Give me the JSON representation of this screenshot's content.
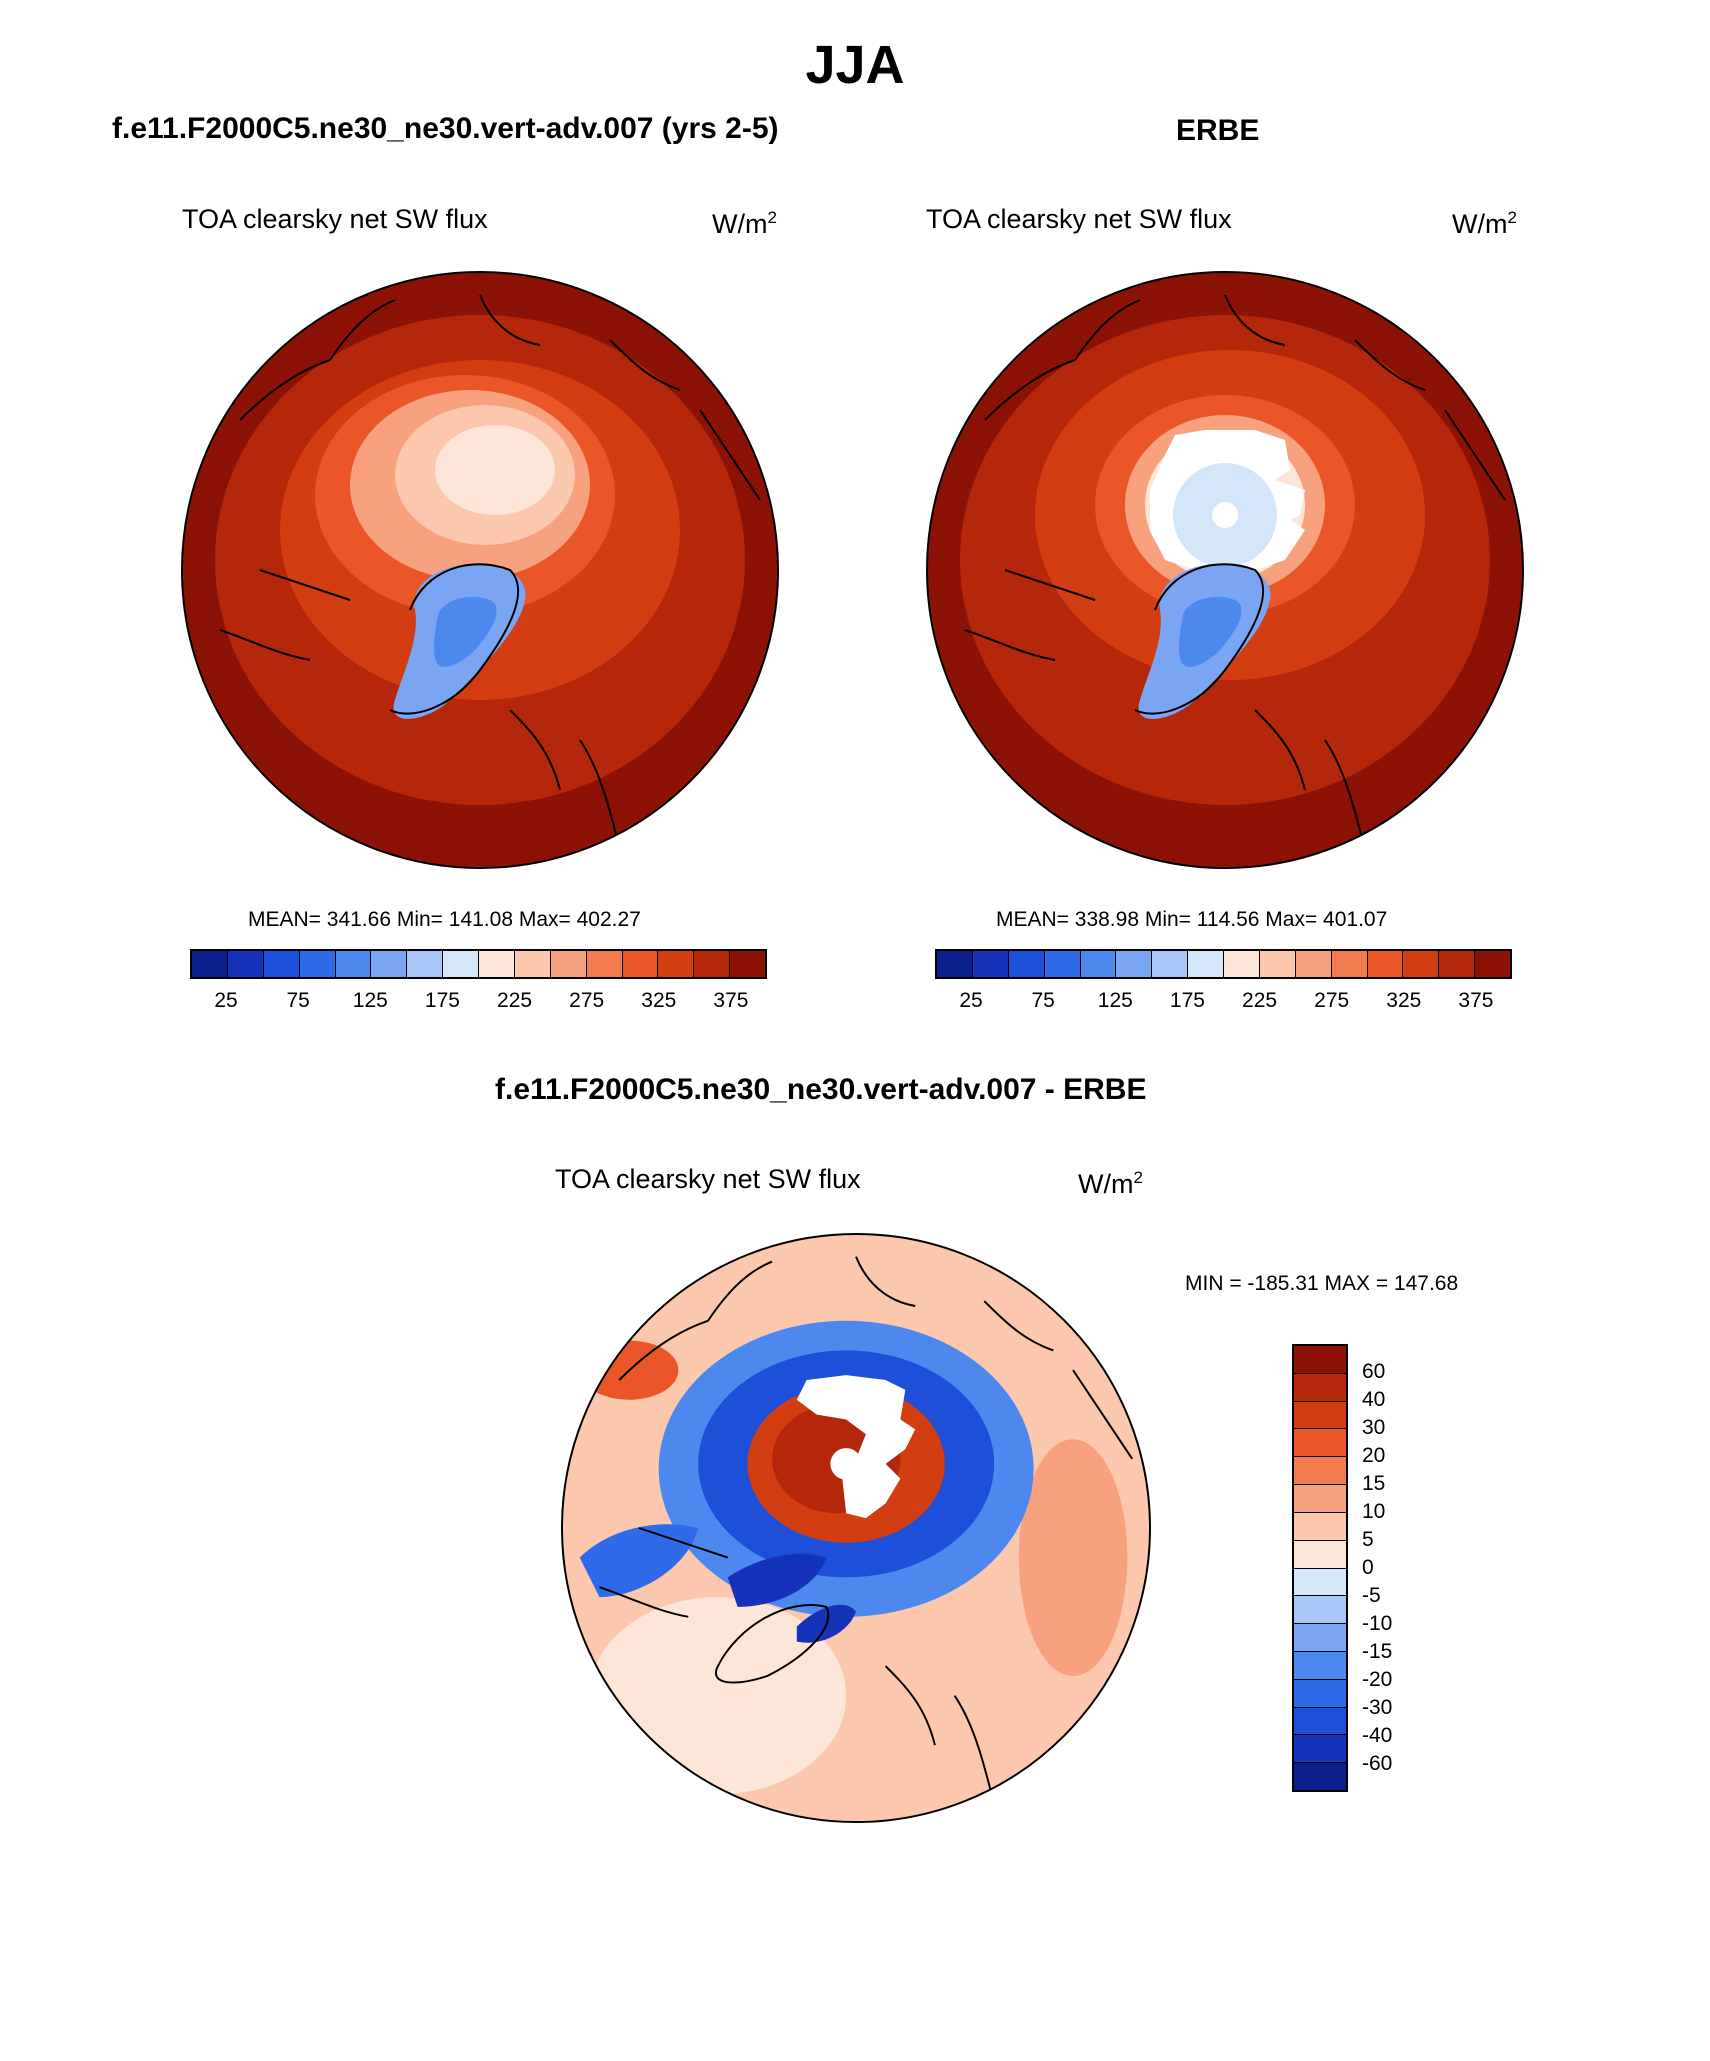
{
  "figure": {
    "season": "JJA",
    "panel_left": {
      "case": "f.e11.F2000C5.ne30_ne30.vert-adv.007 (yrs 2-5)",
      "variable": "TOA clearsky net SW flux",
      "units_base": "W/m",
      "units_exp": "2",
      "stats": "MEAN= 341.66  Min= 141.08  Max= 402.27"
    },
    "panel_right": {
      "case": "ERBE",
      "variable": "TOA clearsky net SW flux",
      "units_base": "W/m",
      "units_exp": "2",
      "stats": "MEAN= 338.98  Min= 114.56  Max= 401.07"
    },
    "panel_diff": {
      "case": "f.e11.F2000C5.ne30_ne30.vert-adv.007 - ERBE",
      "variable": "TOA clearsky net SW flux",
      "units_base": "W/m",
      "units_exp": "2",
      "stats": "MIN = -185.31 MAX = 147.68"
    }
  },
  "colorbar_abs": {
    "tick_labels": [
      "25",
      "75",
      "125",
      "175",
      "225",
      "275",
      "325",
      "375"
    ],
    "colors": [
      "#0b1f8c",
      "#1533b8",
      "#1d4fd8",
      "#2f6be8",
      "#4d88ef",
      "#79a5f2",
      "#a8c6f5",
      "#d4e6fa",
      "#fde6d8",
      "#fbc7ad",
      "#f7a17f",
      "#f27b50",
      "#ea5627",
      "#d33d12",
      "#b5270a",
      "#8c1206"
    ]
  },
  "colorbar_diff": {
    "tick_labels": [
      "60",
      "40",
      "30",
      "20",
      "15",
      "10",
      "5",
      "0",
      "-5",
      "-10",
      "-15",
      "-20",
      "-30",
      "-40",
      "-60"
    ],
    "colors": [
      "#8c1206",
      "#b5270a",
      "#d33d12",
      "#ea5627",
      "#f27b50",
      "#f7a17f",
      "#fbc7ad",
      "#fde6d8",
      "#d4e6fa",
      "#a8c6f5",
      "#79a5f2",
      "#4d88ef",
      "#2f6be8",
      "#1d4fd8",
      "#1533b8",
      "#0b1f8c"
    ]
  },
  "chart_data": [
    {
      "type": "heatmap",
      "title": "TOA clearsky net SW flux",
      "subtitle": "f.e11.F2000C5.ne30_ne30.vert-adv.007 (yrs 2-5)",
      "units": "W/m2",
      "projection": "north polar stereographic",
      "mean": 341.66,
      "min": 141.08,
      "max": 402.27,
      "levels": [
        25,
        50,
        75,
        100,
        125,
        150,
        175,
        200,
        225,
        250,
        275,
        300,
        325,
        350,
        375
      ]
    },
    {
      "type": "heatmap",
      "title": "TOA clearsky net SW flux",
      "subtitle": "ERBE",
      "units": "W/m2",
      "projection": "north polar stereographic",
      "mean": 338.98,
      "min": 114.56,
      "max": 401.07,
      "levels": [
        25,
        50,
        75,
        100,
        125,
        150,
        175,
        200,
        225,
        250,
        275,
        300,
        325,
        350,
        375
      ]
    },
    {
      "type": "heatmap",
      "title": "TOA clearsky net SW flux",
      "subtitle": "f.e11.F2000C5.ne30_ne30.vert-adv.007 - ERBE",
      "units": "W/m2",
      "projection": "north polar stereographic",
      "min": -185.31,
      "max": 147.68,
      "levels": [
        -60,
        -40,
        -30,
        -20,
        -15,
        -10,
        -5,
        0,
        5,
        10,
        15,
        20,
        30,
        40,
        60
      ]
    }
  ]
}
